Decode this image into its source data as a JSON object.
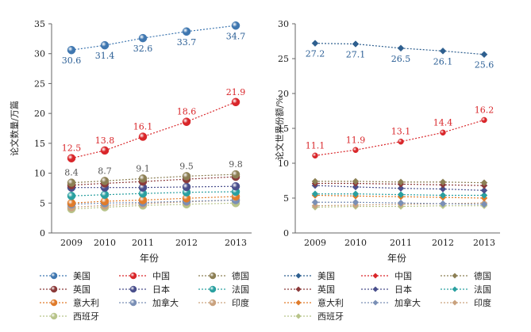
{
  "chart_data": [
    {
      "type": "line",
      "title": "",
      "xlabel": "年份",
      "ylabel": "论文数量/万篇",
      "x": [
        "2009",
        "2010",
        "2011",
        "2012",
        "2013"
      ],
      "ylim": [
        0,
        35
      ],
      "yticks": [
        "0",
        "5",
        "10",
        "15",
        "20",
        "25",
        "30",
        "35"
      ],
      "series": [
        {
          "name": "美国",
          "color": "#3f77b0",
          "values": [
            30.6,
            31.4,
            32.6,
            33.7,
            34.7
          ],
          "labels": [
            "30.6",
            "31.4",
            "32.6",
            "33.7",
            "34.7"
          ],
          "label_color": "#2a5e95",
          "label_pos": "below"
        },
        {
          "name": "中国",
          "color": "#d9262a",
          "values": [
            12.5,
            13.8,
            16.1,
            18.6,
            21.9
          ],
          "labels": [
            "12.5",
            "13.8",
            "16.1",
            "18.6",
            "21.9"
          ],
          "label_color": "#d9262a",
          "label_pos": "above"
        },
        {
          "name": "德国",
          "color": "#8c7f54",
          "values": [
            8.4,
            8.7,
            9.1,
            9.5,
            9.8
          ],
          "labels": [
            "8.4",
            "8.7",
            "9.1",
            "9.5",
            "9.8"
          ],
          "label_color": "#555555",
          "label_pos": "above"
        },
        {
          "name": "英国",
          "color": "#8b3a3a",
          "values": [
            8.0,
            8.3,
            8.6,
            9.0,
            9.4
          ],
          "labels": [],
          "label_pos": "none"
        },
        {
          "name": "日本",
          "color": "#4a4f8c",
          "values": [
            7.6,
            7.6,
            7.6,
            7.7,
            7.8
          ],
          "labels": [],
          "label_pos": "none"
        },
        {
          "name": "法国",
          "color": "#2aa0a0",
          "values": [
            6.2,
            6.4,
            6.6,
            6.8,
            6.9
          ],
          "labels": [],
          "label_pos": "none"
        },
        {
          "name": "意大利",
          "color": "#e07b2a",
          "values": [
            5.0,
            5.3,
            5.5,
            5.8,
            6.1
          ],
          "labels": [],
          "label_pos": "none"
        },
        {
          "name": "加拿大",
          "color": "#7a8fb5",
          "values": [
            4.8,
            5.0,
            5.1,
            5.3,
            5.5
          ],
          "labels": [],
          "label_pos": "none"
        },
        {
          "name": "印度",
          "color": "#c9a27e",
          "values": [
            4.3,
            4.6,
            4.9,
            5.2,
            5.5
          ],
          "labels": [],
          "label_pos": "none"
        },
        {
          "name": "西班牙",
          "color": "#b8c48a",
          "values": [
            4.0,
            4.3,
            4.6,
            4.8,
            5.0
          ],
          "labels": [],
          "label_pos": "none"
        }
      ]
    },
    {
      "type": "line",
      "title": "",
      "xlabel": "年份",
      "ylabel": "论文世界份额/%",
      "x": [
        "2009",
        "2010",
        "2011",
        "2012",
        "2013"
      ],
      "ylim": [
        0,
        30
      ],
      "yticks": [
        "0",
        "5",
        "10",
        "15",
        "20",
        "25",
        "30"
      ],
      "series": [
        {
          "name": "美国",
          "color": "#2e5f8f",
          "values": [
            27.2,
            27.1,
            26.5,
            26.1,
            25.6
          ],
          "labels": [
            "27.2",
            "27.1",
            "26.5",
            "26.1",
            "25.6"
          ],
          "label_color": "#2a5e95",
          "label_pos": "below"
        },
        {
          "name": "中国",
          "color": "#d9262a",
          "values": [
            11.1,
            11.9,
            13.1,
            14.4,
            16.2
          ],
          "labels": [
            "11.1",
            "11.9",
            "13.1",
            "14.4",
            "16.2"
          ],
          "label_color": "#d9262a",
          "label_pos": "above"
        },
        {
          "name": "德国",
          "color": "#8c7f54",
          "values": [
            7.4,
            7.4,
            7.3,
            7.3,
            7.2
          ],
          "labels": [],
          "label_pos": "none"
        },
        {
          "name": "英国",
          "color": "#8b3a3a",
          "values": [
            7.1,
            7.1,
            7.0,
            6.9,
            6.8
          ],
          "labels": [],
          "label_pos": "none"
        },
        {
          "name": "日本",
          "color": "#4a4f8c",
          "values": [
            6.8,
            6.6,
            6.4,
            6.3,
            6.1
          ],
          "labels": [],
          "label_pos": "none"
        },
        {
          "name": "法国",
          "color": "#2aa0a0",
          "values": [
            5.6,
            5.6,
            5.5,
            5.4,
            5.4
          ],
          "labels": [],
          "label_pos": "none"
        },
        {
          "name": "意大利",
          "color": "#e07b2a",
          "values": [
            5.4,
            5.3,
            5.2,
            5.1,
            5.0
          ],
          "labels": [],
          "label_pos": "none"
        },
        {
          "name": "加拿大",
          "color": "#7a8fb5",
          "values": [
            4.4,
            4.4,
            4.3,
            4.2,
            4.1
          ],
          "labels": [],
          "label_pos": "none"
        },
        {
          "name": "印度",
          "color": "#c9a27e",
          "values": [
            3.9,
            4.0,
            4.1,
            4.2,
            4.3
          ],
          "labels": [],
          "label_pos": "none"
        },
        {
          "name": "西班牙",
          "color": "#b8c48a",
          "values": [
            3.7,
            3.8,
            3.8,
            3.9,
            3.9
          ],
          "labels": [],
          "label_pos": "none"
        }
      ]
    }
  ]
}
